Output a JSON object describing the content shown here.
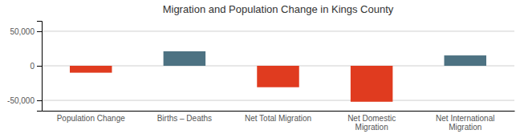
{
  "chart_data": {
    "type": "bar",
    "title": "Migration and Population Change in Kings County",
    "categories": [
      "Population Change",
      "Births – Deaths",
      "Net Total Migration",
      "Net Domestic\nMigration",
      "Net International\nMigration"
    ],
    "values": [
      -10000,
      21000,
      -31000,
      -52000,
      15000
    ],
    "colors": [
      "#e03b1f",
      "#4d7282",
      "#e03b1f",
      "#e03b1f",
      "#4d7282"
    ],
    "ylim": [
      -65000,
      65000
    ],
    "yticks": [
      {
        "value": -50000,
        "label": "-50,000"
      },
      0,
      {
        "value": 50000,
        "label": "50,000"
      }
    ],
    "grid": true
  }
}
